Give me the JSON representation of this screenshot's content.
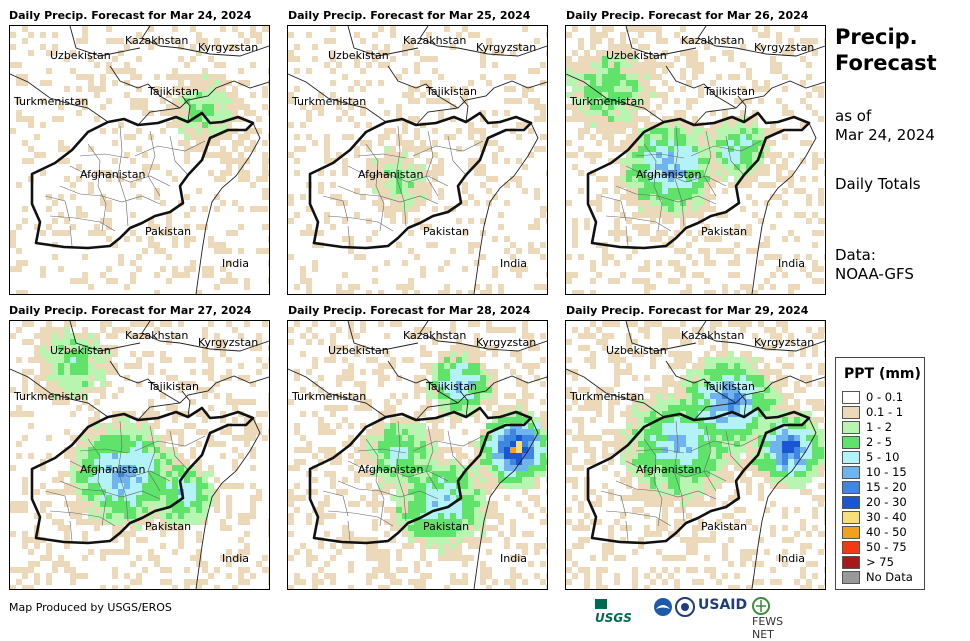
{
  "panels": [
    {
      "title": "Daily Precip. Forecast for Mar 24, 2024",
      "intensity": 0
    },
    {
      "title": "Daily Precip. Forecast for Mar 25, 2024",
      "intensity": 1
    },
    {
      "title": "Daily Precip. Forecast for Mar 26, 2024",
      "intensity": 3
    },
    {
      "title": "Daily Precip. Forecast for Mar 27, 2024",
      "intensity": 3
    },
    {
      "title": "Daily Precip. Forecast for Mar 28, 2024",
      "intensity": 4
    },
    {
      "title": "Daily Precip. Forecast for Mar 29, 2024",
      "intensity": 4
    }
  ],
  "map_labels": {
    "kazakhstan": "Kazakhstan",
    "kyrgyzstan": "Kyrgyzstan",
    "uzbekistan": "Uzbekistan",
    "tajikistan": "Tajikistan",
    "turkmenistan": "Turkmenistan",
    "afghanistan": "Afghanistan",
    "pakistan": "Pakistan",
    "india": "India"
  },
  "sidebar": {
    "heading_line1": "Precip.",
    "heading_line2": "Forecast",
    "as_of_line1": "as of",
    "as_of_line2": "Mar 24, 2024",
    "totals": "Daily Totals",
    "data_line1": "Data:",
    "data_line2": "NOAA-GFS"
  },
  "legend": {
    "title": "PPT (mm)",
    "items": [
      {
        "label": "0 - 0.1",
        "color": "#ffffff"
      },
      {
        "label": "0.1 - 1",
        "color": "#ecd9b9"
      },
      {
        "label": "1 - 2",
        "color": "#b8f5b0"
      },
      {
        "label": "2 - 5",
        "color": "#5fe36a"
      },
      {
        "label": "5 - 10",
        "color": "#b3f3f7"
      },
      {
        "label": "10 - 15",
        "color": "#6fb4ef"
      },
      {
        "label": "15 - 20",
        "color": "#3f86e3"
      },
      {
        "label": "20 - 30",
        "color": "#1a55d2"
      },
      {
        "label": "30 - 40",
        "color": "#f7e07a"
      },
      {
        "label": "40 - 50",
        "color": "#f2a11e"
      },
      {
        "label": "50 - 75",
        "color": "#ef3a14"
      },
      {
        "label": "> 75",
        "color": "#a8191c"
      },
      {
        "label": "No Data",
        "color": "#999999"
      }
    ]
  },
  "footer": {
    "credit": "Map Produced by USGS/EROS",
    "logo_usgs": "USGS",
    "logo_usaid": "USAID",
    "logo_fews": "FEWS NET"
  }
}
